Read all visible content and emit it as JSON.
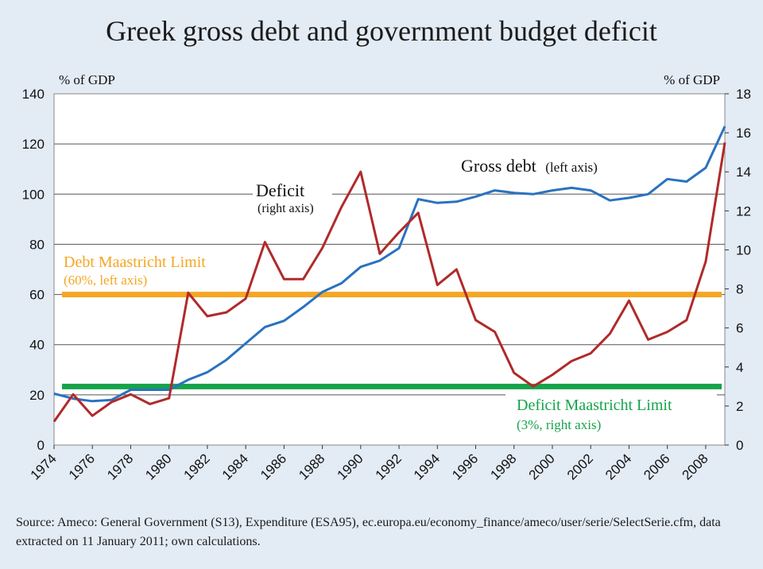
{
  "chart_data": {
    "type": "line",
    "title": "Greek gross debt and government budget deficit",
    "left_axis_unit": "% of GDP",
    "right_axis_unit": "% of GDP",
    "left_ylim": [
      0,
      140
    ],
    "right_ylim": [
      0,
      18
    ],
    "left_ticks": [
      0,
      20,
      40,
      60,
      80,
      100,
      120,
      140
    ],
    "right_ticks": [
      0,
      2,
      4,
      6,
      8,
      10,
      12,
      14,
      16,
      18
    ],
    "x_ticks": [
      1974,
      1976,
      1978,
      1980,
      1982,
      1984,
      1986,
      1988,
      1990,
      1992,
      1994,
      1996,
      1998,
      2000,
      2002,
      2004,
      2006,
      2008
    ],
    "xlim": [
      1974,
      2009
    ],
    "grid": true,
    "series": [
      {
        "name": "Gross debt",
        "axis": "left",
        "color": "#2a72c0",
        "x": [
          1974,
          1975,
          1976,
          1977,
          1978,
          1979,
          1980,
          1981,
          1982,
          1983,
          1984,
          1985,
          1986,
          1987,
          1988,
          1989,
          1990,
          1991,
          1992,
          1993,
          1994,
          1995,
          1996,
          1997,
          1998,
          1999,
          2000,
          2001,
          2002,
          2003,
          2004,
          2005,
          2006,
          2007,
          2008,
          2009
        ],
        "values": [
          20.5,
          18.5,
          17.5,
          18,
          22,
          22,
          22,
          26,
          29,
          34,
          40.5,
          47,
          49.5,
          55,
          61,
          64.5,
          71,
          73.5,
          78.5,
          98,
          96.5,
          97,
          99,
          101.5,
          100.5,
          100,
          101.5,
          102.5,
          101.5,
          97.5,
          98.5,
          100,
          106,
          105,
          110.5,
          127
        ]
      },
      {
        "name": "Deficit",
        "axis": "right",
        "color": "#b02a2a",
        "x": [
          1974,
          1975,
          1976,
          1977,
          1978,
          1979,
          1980,
          1981,
          1982,
          1983,
          1984,
          1985,
          1986,
          1987,
          1988,
          1989,
          1990,
          1991,
          1992,
          1993,
          1994,
          1995,
          1996,
          1997,
          1998,
          1999,
          2000,
          2001,
          2002,
          2003,
          2004,
          2005,
          2006,
          2007,
          2008,
          2009
        ],
        "values": [
          1.2,
          2.6,
          1.5,
          2.2,
          2.6,
          2.1,
          2.4,
          7.8,
          6.6,
          6.8,
          7.5,
          10.4,
          8.5,
          8.5,
          10.1,
          12.2,
          14.0,
          9.8,
          10.9,
          11.9,
          8.2,
          9.0,
          6.4,
          5.8,
          3.7,
          3.0,
          3.6,
          4.3,
          4.7,
          5.7,
          7.4,
          5.4,
          5.8,
          6.4,
          9.4,
          15.5
        ]
      }
    ],
    "reference_lines": [
      {
        "name": "Debt Maastricht Limit",
        "axis": "left",
        "value": 60,
        "color": "#f5a623"
      },
      {
        "name": "Deficit Maastricht Limit",
        "axis": "right",
        "value": 3,
        "color": "#16a34a"
      }
    ],
    "annotations": {
      "debt_label": "Gross debt",
      "debt_note": "(left axis)",
      "deficit_label": "Deficit",
      "deficit_note": "(right axis)",
      "debt_limit_label": "Debt Maastricht Limit",
      "debt_limit_note": "(60%, left axis)",
      "deficit_limit_label": "Deficit Maastricht Limit",
      "deficit_limit_note": "(3%, right axis)"
    }
  },
  "source_text": "Source: Ameco: General Government (S13), Expenditure (ESA95), ec.europa.eu/economy_finance/ameco/user/serie/SelectSerie.cfm, data extracted on 11 January 2011; own calculations."
}
